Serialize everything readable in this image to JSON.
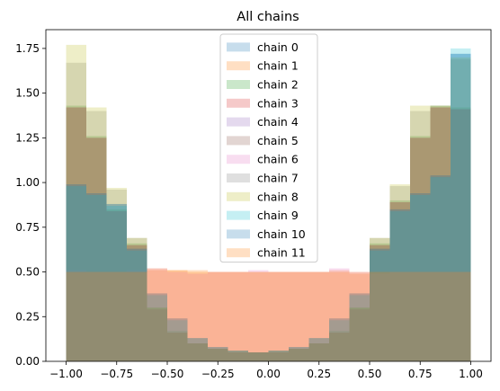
{
  "chart_data": {
    "type": "histogram",
    "title": "All chains",
    "xlabel": "",
    "ylabel": "",
    "xlim": [
      -1.1,
      1.1
    ],
    "ylim": [
      0,
      1.855
    ],
    "grid": false,
    "legend_position": "top-center",
    "bins": [
      -1.0,
      -0.9,
      -0.8,
      -0.7,
      -0.6,
      -0.5,
      -0.4,
      -0.3,
      -0.2,
      -0.1,
      0.0,
      0.1,
      0.2,
      0.3,
      0.4,
      0.5,
      0.6,
      0.7,
      0.8,
      0.9,
      1.0
    ],
    "x_ticks": [
      -1.0,
      -0.75,
      -0.5,
      -0.25,
      0.0,
      0.25,
      0.5,
      0.75,
      1.0
    ],
    "x_tick_labels": [
      "−1.00",
      "−0.75",
      "−0.50",
      "−0.25",
      "0.00",
      "0.25",
      "0.50",
      "0.75",
      "1.00"
    ],
    "y_ticks": [
      0.0,
      0.25,
      0.5,
      0.75,
      1.0,
      1.25,
      1.5,
      1.75
    ],
    "y_tick_labels": [
      "0.00",
      "0.25",
      "0.50",
      "0.75",
      "1.00",
      "1.25",
      "1.50",
      "1.75"
    ],
    "series": [
      {
        "name": "chain 0",
        "color": "#1f77b4",
        "values": [
          0.99,
          0.94,
          0.88,
          0.63,
          0.38,
          0.24,
          0.13,
          0.08,
          0.06,
          0.05,
          0.06,
          0.08,
          0.13,
          0.24,
          0.38,
          0.63,
          0.85,
          0.94,
          1.04,
          1.72
        ]
      },
      {
        "name": "chain 1",
        "color": "#ff7f0e",
        "values": [
          0.5,
          0.5,
          0.5,
          0.5,
          0.51,
          0.51,
          0.51,
          0.5,
          0.5,
          0.5,
          0.5,
          0.5,
          0.5,
          0.51,
          0.49,
          0.5,
          0.5,
          0.5,
          0.5,
          0.5
        ]
      },
      {
        "name": "chain 2",
        "color": "#2ca02c",
        "values": [
          1.43,
          1.26,
          0.85,
          0.66,
          0.3,
          0.17,
          0.1,
          0.07,
          0.06,
          0.05,
          0.06,
          0.07,
          0.1,
          0.17,
          0.3,
          0.66,
          0.9,
          1.26,
          1.43,
          1.42
        ]
      },
      {
        "name": "chain 3",
        "color": "#d62728",
        "values": [
          1.42,
          1.25,
          0.84,
          0.65,
          0.29,
          0.16,
          0.1,
          0.07,
          0.05,
          0.05,
          0.05,
          0.07,
          0.1,
          0.16,
          0.29,
          0.65,
          0.89,
          1.25,
          1.42,
          1.41
        ]
      },
      {
        "name": "chain 4",
        "color": "#9467bd",
        "values": [
          1.42,
          1.25,
          0.84,
          0.65,
          0.29,
          0.16,
          0.1,
          0.07,
          0.05,
          0.05,
          0.05,
          0.07,
          0.1,
          0.16,
          0.29,
          0.65,
          0.89,
          1.25,
          1.42,
          1.41
        ]
      },
      {
        "name": "chain 5",
        "color": "#8c564b",
        "values": [
          1.42,
          1.25,
          0.84,
          0.65,
          0.29,
          0.16,
          0.1,
          0.07,
          0.05,
          0.05,
          0.05,
          0.07,
          0.1,
          0.16,
          0.29,
          0.65,
          0.89,
          1.25,
          1.42,
          1.41
        ]
      },
      {
        "name": "chain 6",
        "color": "#e377c2",
        "values": [
          0.51,
          0.5,
          0.5,
          0.51,
          0.52,
          0.5,
          0.49,
          0.5,
          0.5,
          0.51,
          0.5,
          0.5,
          0.5,
          0.52,
          0.5,
          0.49,
          0.5,
          0.5,
          0.5,
          0.5
        ]
      },
      {
        "name": "chain 7",
        "color": "#7f7f7f",
        "values": [
          1.67,
          1.4,
          0.96,
          0.69,
          0.3,
          0.16,
          0.1,
          0.07,
          0.05,
          0.05,
          0.05,
          0.07,
          0.1,
          0.16,
          0.3,
          0.69,
          0.98,
          1.4,
          1.43,
          1.69
        ]
      },
      {
        "name": "chain 8",
        "color": "#bcbd22",
        "values": [
          1.77,
          1.42,
          0.97,
          0.69,
          0.3,
          0.16,
          0.1,
          0.07,
          0.05,
          0.05,
          0.05,
          0.07,
          0.1,
          0.16,
          0.3,
          0.69,
          0.99,
          1.43,
          1.43,
          1.7
        ]
      },
      {
        "name": "chain 9",
        "color": "#17becf",
        "values": [
          0.98,
          0.93,
          0.87,
          0.62,
          0.37,
          0.23,
          0.13,
          0.08,
          0.06,
          0.05,
          0.06,
          0.08,
          0.13,
          0.23,
          0.37,
          0.62,
          0.84,
          0.93,
          1.03,
          1.75
        ]
      },
      {
        "name": "chain 10",
        "color": "#1f77b4",
        "values": [
          0.99,
          0.94,
          0.88,
          0.63,
          0.38,
          0.24,
          0.13,
          0.08,
          0.06,
          0.05,
          0.06,
          0.08,
          0.13,
          0.24,
          0.38,
          0.63,
          0.85,
          0.94,
          1.04,
          1.72
        ]
      },
      {
        "name": "chain 11",
        "color": "#ff7f0e",
        "values": [
          0.5,
          0.5,
          0.5,
          0.5,
          0.52,
          0.51,
          0.5,
          0.5,
          0.5,
          0.5,
          0.5,
          0.5,
          0.5,
          0.5,
          0.5,
          0.5,
          0.5,
          0.5,
          0.5,
          0.5
        ]
      }
    ]
  }
}
